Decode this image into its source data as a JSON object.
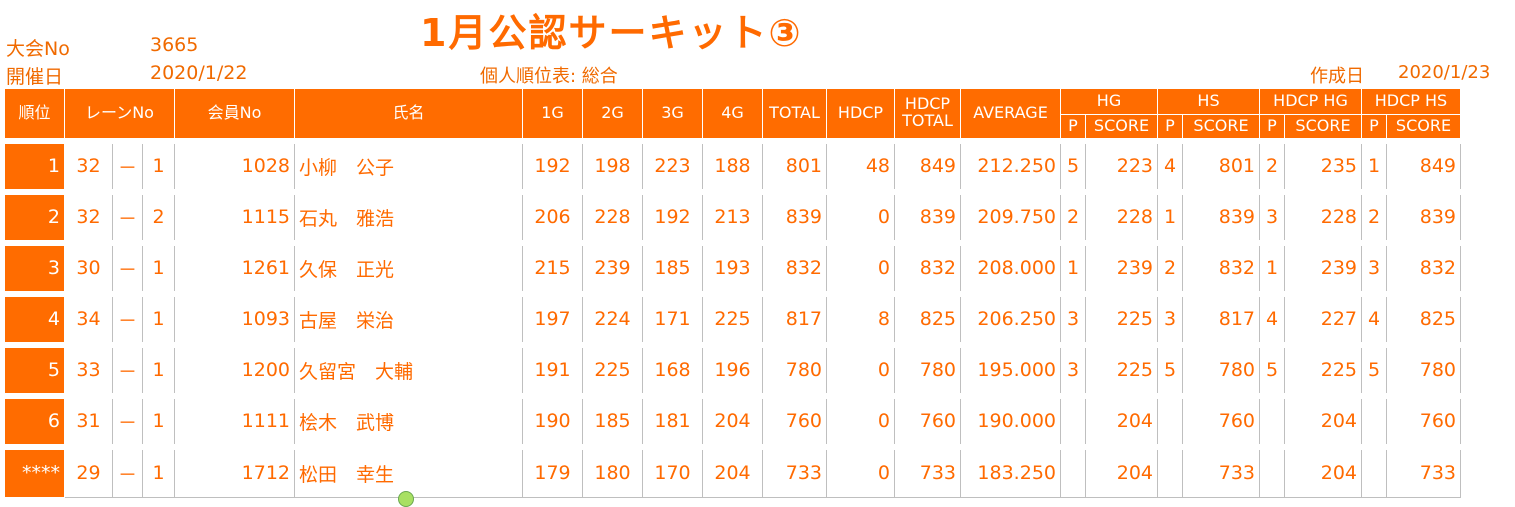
{
  "header": {
    "title": "1月公認サーキット③",
    "tournament_no_label": "大会No",
    "tournament_no": "3665",
    "date_label": "開催日",
    "date": "2020/1/22",
    "report_name": "個人順位表: 総合",
    "created_label": "作成日",
    "created_date": "2020/1/23"
  },
  "columns": {
    "rank": "順位",
    "lane": "レーンNo",
    "member": "会員No",
    "name": "氏名",
    "g1": "1G",
    "g2": "2G",
    "g3": "3G",
    "g4": "4G",
    "total": "TOTAL",
    "hdcp": "HDCP",
    "hdcp_total_1": "HDCP",
    "hdcp_total_2": "TOTAL",
    "average": "AVERAGE",
    "hg": "HG",
    "hs": "HS",
    "hdcp_hg": "HDCP HG",
    "hdcp_hs": "HDCP HS",
    "p": "P",
    "score": "SCORE"
  },
  "rows": [
    {
      "rank": "1",
      "lane": "32",
      "sep": "－",
      "lane_sub": "1",
      "member": "1028",
      "name": "小柳　公子",
      "g1": "192",
      "g2": "198",
      "g3": "223",
      "g4": "188",
      "total": "801",
      "hdcp": "48",
      "hdcp_total": "849",
      "average": "212.250",
      "hg_p": "5",
      "hg_score": "223",
      "hs_p": "4",
      "hs_score": "801",
      "hhg_p": "2",
      "hhg_score": "235",
      "hhs_p": "1",
      "hhs_score": "849"
    },
    {
      "rank": "2",
      "lane": "32",
      "sep": "－",
      "lane_sub": "2",
      "member": "1115",
      "name": "石丸　雅浩",
      "g1": "206",
      "g2": "228",
      "g3": "192",
      "g4": "213",
      "total": "839",
      "hdcp": "0",
      "hdcp_total": "839",
      "average": "209.750",
      "hg_p": "2",
      "hg_score": "228",
      "hs_p": "1",
      "hs_score": "839",
      "hhg_p": "3",
      "hhg_score": "228",
      "hhs_p": "2",
      "hhs_score": "839"
    },
    {
      "rank": "3",
      "lane": "30",
      "sep": "－",
      "lane_sub": "1",
      "member": "1261",
      "name": "久保　正光",
      "g1": "215",
      "g2": "239",
      "g3": "185",
      "g4": "193",
      "total": "832",
      "hdcp": "0",
      "hdcp_total": "832",
      "average": "208.000",
      "hg_p": "1",
      "hg_score": "239",
      "hs_p": "2",
      "hs_score": "832",
      "hhg_p": "1",
      "hhg_score": "239",
      "hhs_p": "3",
      "hhs_score": "832"
    },
    {
      "rank": "4",
      "lane": "34",
      "sep": "－",
      "lane_sub": "1",
      "member": "1093",
      "name": "古屋　栄治",
      "g1": "197",
      "g2": "224",
      "g3": "171",
      "g4": "225",
      "total": "817",
      "hdcp": "8",
      "hdcp_total": "825",
      "average": "206.250",
      "hg_p": "3",
      "hg_score": "225",
      "hs_p": "3",
      "hs_score": "817",
      "hhg_p": "4",
      "hhg_score": "227",
      "hhs_p": "4",
      "hhs_score": "825"
    },
    {
      "rank": "5",
      "lane": "33",
      "sep": "－",
      "lane_sub": "1",
      "member": "1200",
      "name": "久留宮　大輔",
      "g1": "191",
      "g2": "225",
      "g3": "168",
      "g4": "196",
      "total": "780",
      "hdcp": "0",
      "hdcp_total": "780",
      "average": "195.000",
      "hg_p": "3",
      "hg_score": "225",
      "hs_p": "5",
      "hs_score": "780",
      "hhg_p": "5",
      "hhg_score": "225",
      "hhs_p": "5",
      "hhs_score": "780"
    },
    {
      "rank": "6",
      "lane": "31",
      "sep": "－",
      "lane_sub": "1",
      "member": "1111",
      "name": "桧木　武博",
      "g1": "190",
      "g2": "185",
      "g3": "181",
      "g4": "204",
      "total": "760",
      "hdcp": "0",
      "hdcp_total": "760",
      "average": "190.000",
      "hg_p": "",
      "hg_score": "204",
      "hs_p": "",
      "hs_score": "760",
      "hhg_p": "",
      "hhg_score": "204",
      "hhs_p": "",
      "hhs_score": "760"
    },
    {
      "rank": "****",
      "lane": "29",
      "sep": "－",
      "lane_sub": "1",
      "member": "1712",
      "name": "松田　幸生",
      "g1": "179",
      "g2": "180",
      "g3": "170",
      "g4": "204",
      "total": "733",
      "hdcp": "0",
      "hdcp_total": "733",
      "average": "183.250",
      "hg_p": "",
      "hg_score": "204",
      "hs_p": "",
      "hs_score": "733",
      "hhg_p": "",
      "hhg_score": "204",
      "hhs_p": "",
      "hhs_score": "733"
    }
  ]
}
